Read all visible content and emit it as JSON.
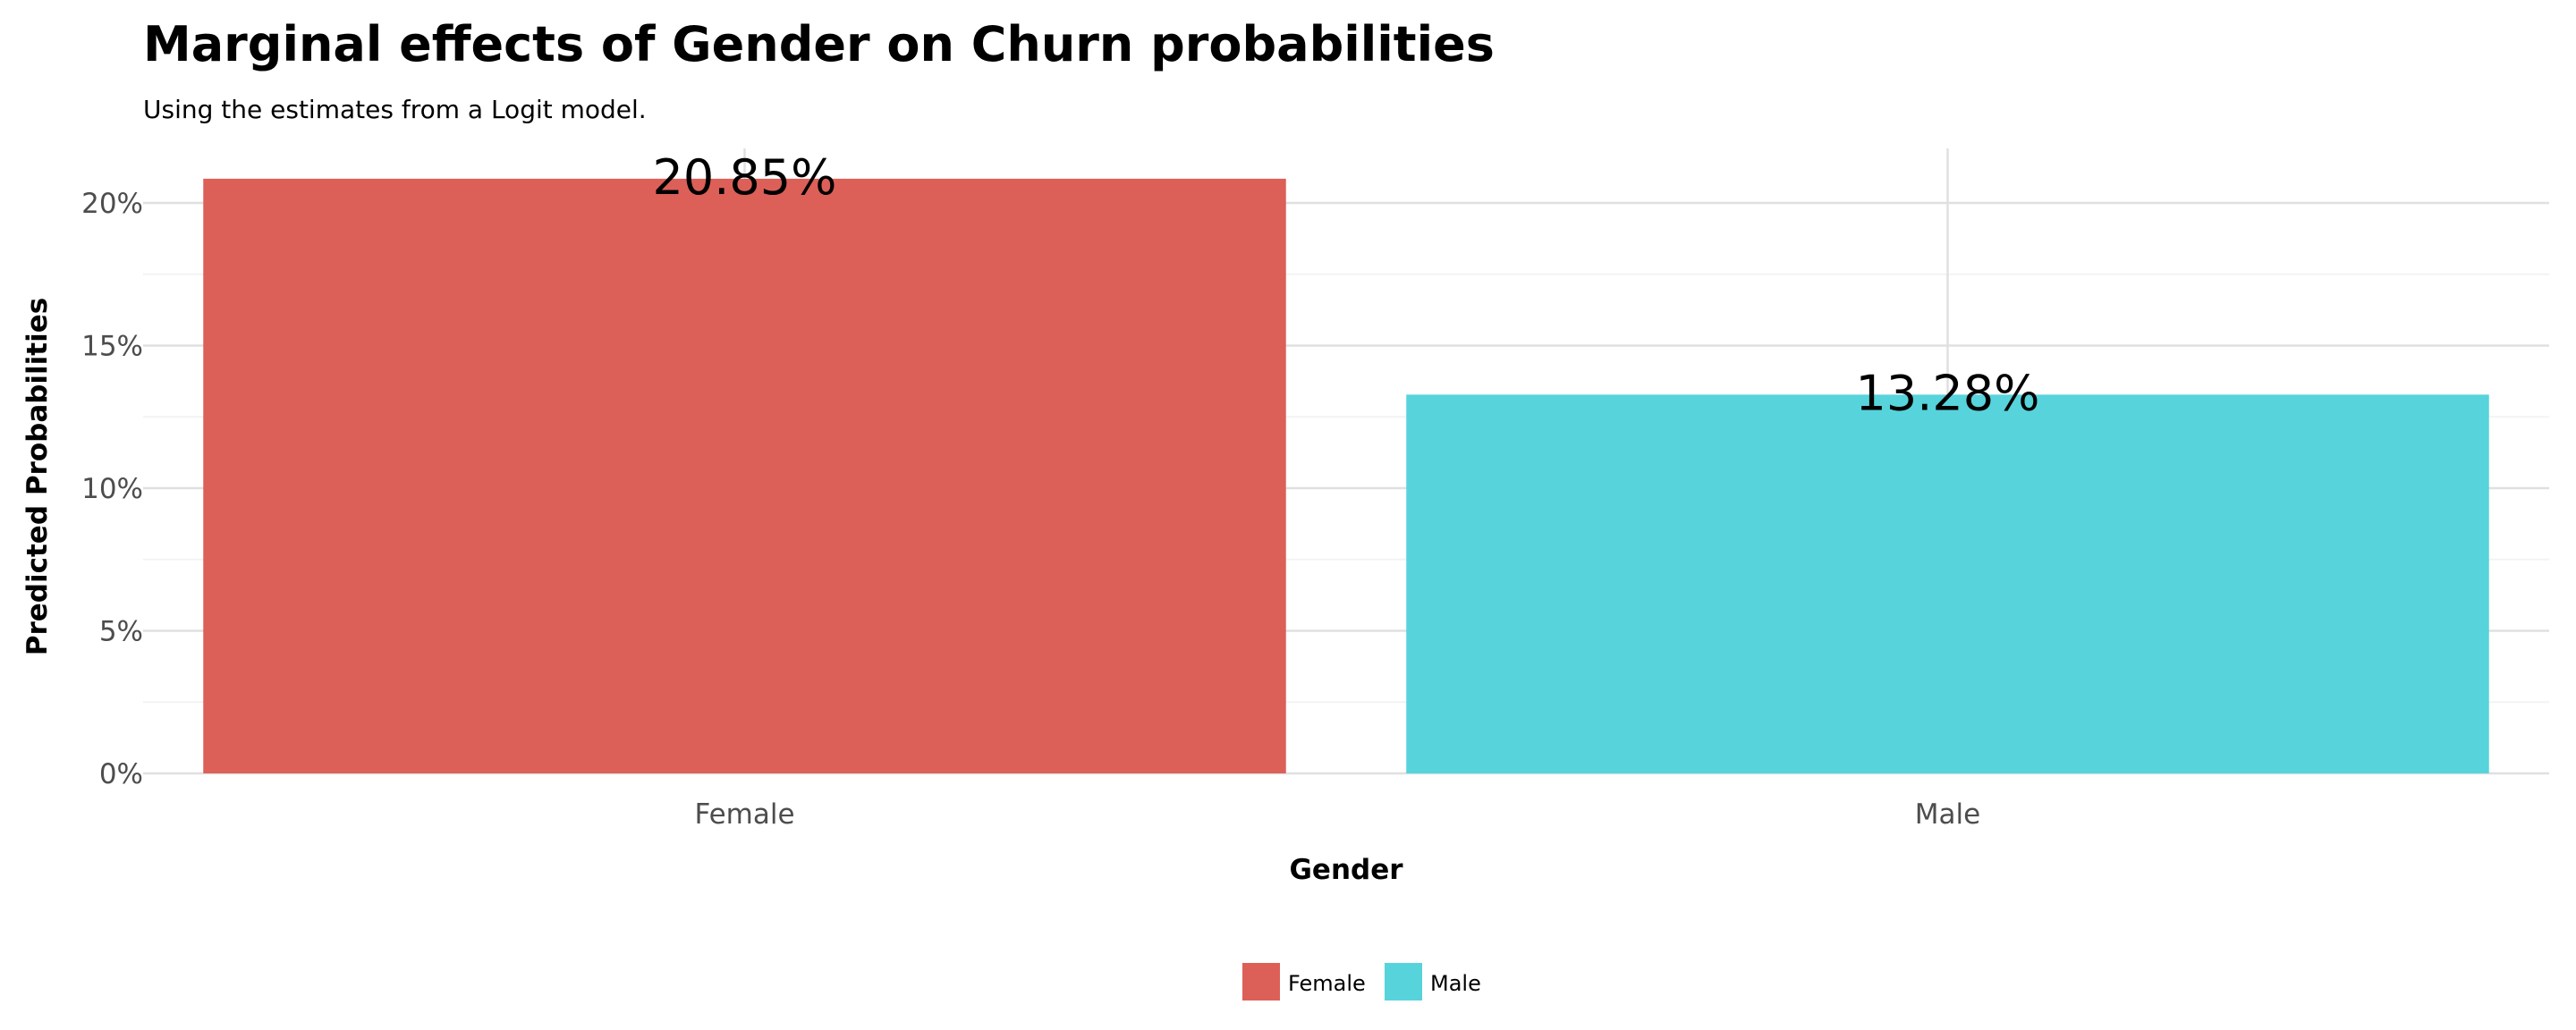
{
  "chart_data": {
    "type": "bar",
    "title": "Marginal effects of Gender on Churn probabilities",
    "subtitle": "Using the estimates from a Logit model.",
    "xlabel": "Gender",
    "ylabel": "Predicted Probabilities",
    "categories": [
      "Female",
      "Male"
    ],
    "values": [
      20.85,
      13.28
    ],
    "value_labels": [
      "20.85%",
      "13.28%"
    ],
    "colors": [
      "#dc6058",
      "#57d3db"
    ],
    "ylim": [
      0,
      22
    ],
    "yticks": [
      0,
      5,
      10,
      15,
      20
    ],
    "ytick_labels": [
      "0%",
      "5%",
      "10%",
      "15%",
      "20%"
    ],
    "grid": true,
    "legend": {
      "position": "bottom",
      "entries": [
        {
          "label": "Female",
          "color": "#dc6058"
        },
        {
          "label": "Male",
          "color": "#57d3db"
        }
      ]
    }
  }
}
